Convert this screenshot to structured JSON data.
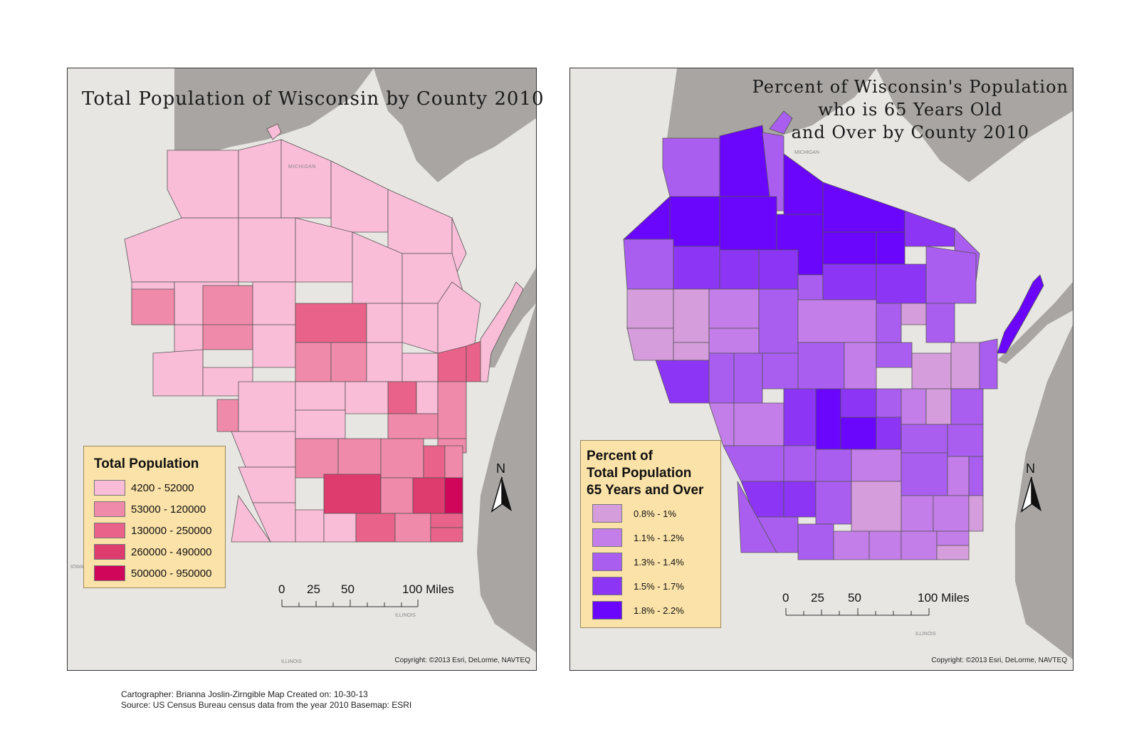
{
  "left_map": {
    "title": "Total Population of Wisconsin by County 2010",
    "legend": {
      "title": "Total Population",
      "items": [
        {
          "label": "4200 - 52000",
          "color": "#f9bdd7"
        },
        {
          "label": "53000 - 120000",
          "color": "#f08aaa"
        },
        {
          "label": "130000 - 250000",
          "color": "#e8628a"
        },
        {
          "label": "260000 - 490000",
          "color": "#de3b6f"
        },
        {
          "label": "500000 - 950000",
          "color": "#d0065a"
        }
      ]
    },
    "scale": {
      "tick_0": "0",
      "tick_25": "25",
      "tick_50": "50",
      "tick_100": "100 Miles"
    },
    "north": "N",
    "copyright": "Copyright: ©2013 Esri, DeLorme, NAVTEQ",
    "basemap_labels": {
      "michigan": "MICHIGAN",
      "illinois": "ILLINOIS",
      "illinois2": "ILLINOIS",
      "iowa": "IOWA"
    }
  },
  "right_map": {
    "title_lines": [
      "Percent of Wisconsin's Population",
      "who is 65 Years Old",
      "and Over by County 2010"
    ],
    "legend": {
      "title_lines": [
        "Percent of",
        "Total Population",
        "65 Years and Over"
      ],
      "items": [
        {
          "label": "0.8% - 1%",
          "color": "#d59ddc"
        },
        {
          "label": "1.1% - 1.2%",
          "color": "#c37ee9"
        },
        {
          "label": "1.3% - 1.4%",
          "color": "#a95ef0"
        },
        {
          "label": "1.5% - 1.7%",
          "color": "#8d35f5"
        },
        {
          "label": "1.8% - 2.2%",
          "color": "#6a06fb"
        }
      ]
    },
    "scale": {
      "tick_0": "0",
      "tick_25": "25",
      "tick_50": "50",
      "tick_100": "100 Miles"
    },
    "north": "N",
    "copyright": "Copyright: ©2013 Esri, DeLorme, NAVTEQ",
    "basemap_labels": {
      "michigan": "MICHIGAN",
      "illinois": "ILLINOIS"
    }
  },
  "credits": {
    "line1": "Cartographer: Brianna Joslin-Zirngible    Map Created on: 10-30-13",
    "line2": "Source: US Census Bureau census data from the year 2010     Basemap: ESRI"
  },
  "colors": {
    "land": "#e8e6e3",
    "water": "#a6a3a0",
    "border": "#555555"
  }
}
